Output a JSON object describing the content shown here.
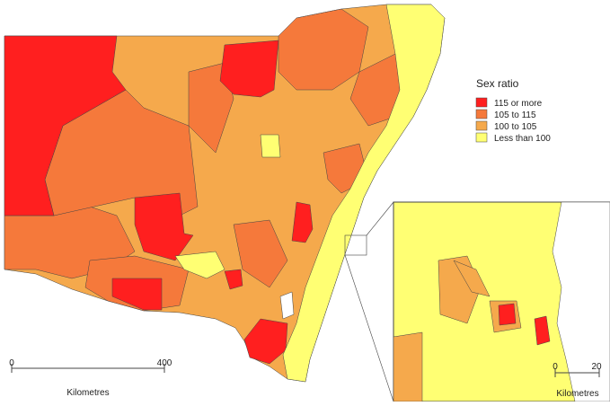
{
  "legend": {
    "title": "Sex ratio",
    "items": [
      {
        "label": "115 or more",
        "color": "#ff1f1f"
      },
      {
        "label": "105 to 115",
        "color": "#f5793b"
      },
      {
        "label": "100 to 105",
        "color": "#f5a94c"
      },
      {
        "label": "Less than 100",
        "color": "#ffff73"
      }
    ]
  },
  "scale_bars": [
    {
      "labels": [
        0,
        400
      ],
      "unit": "Kilometres"
    },
    {
      "labels": [
        0,
        20
      ],
      "unit": "Kilometres"
    }
  ]
}
